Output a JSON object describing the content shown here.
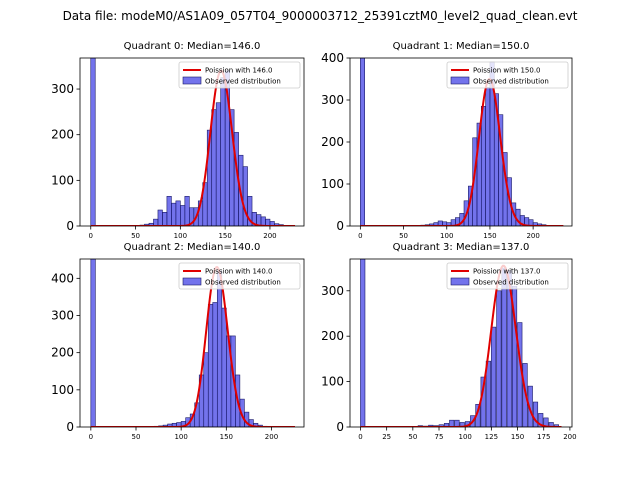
{
  "title": "Data file: modeM0/AS1A09_057T04_9000003712_25391cztM0_level2_quad_clean.evt",
  "colors": {
    "bar": "#0000dc",
    "bar_edge": "#1a1a66",
    "curve": "#e00000"
  },
  "chart_data": [
    {
      "type": "bar",
      "title": "Quadrant 0: Median=146.0",
      "median": 146.0,
      "legend": {
        "curve": "Poission with 146.0",
        "bars": "Observed distribution",
        "placement": "top-right"
      },
      "xlim": [
        -12,
        238
      ],
      "ylim": [
        0,
        368
      ],
      "xticks": [
        0,
        50,
        100,
        150,
        200
      ],
      "yticks": [
        0,
        100,
        200,
        300
      ],
      "bin_width": 5,
      "zero_bar": 368,
      "bins": [
        [
          50,
          1
        ],
        [
          55,
          2
        ],
        [
          60,
          4
        ],
        [
          65,
          6
        ],
        [
          70,
          15
        ],
        [
          75,
          35
        ],
        [
          80,
          30
        ],
        [
          85,
          65
        ],
        [
          90,
          50
        ],
        [
          95,
          55
        ],
        [
          100,
          45
        ],
        [
          105,
          65
        ],
        [
          110,
          40
        ],
        [
          115,
          40
        ],
        [
          120,
          55
        ],
        [
          125,
          95
        ],
        [
          130,
          210
        ],
        [
          135,
          255
        ],
        [
          140,
          270
        ],
        [
          145,
          325
        ],
        [
          150,
          340
        ],
        [
          155,
          255
        ],
        [
          160,
          205
        ],
        [
          165,
          155
        ],
        [
          170,
          130
        ],
        [
          175,
          65
        ],
        [
          180,
          30
        ],
        [
          185,
          25
        ],
        [
          190,
          20
        ],
        [
          195,
          15
        ],
        [
          200,
          10
        ],
        [
          205,
          5
        ],
        [
          210,
          3
        ]
      ],
      "curve_scale": 340
    },
    {
      "type": "bar",
      "title": "Quadrant 1: Median=150.0",
      "median": 150.0,
      "legend": {
        "curve": "Poission with 150.0",
        "bars": "Observed distribution",
        "placement": "top-right"
      },
      "xlim": [
        -12,
        245
      ],
      "ylim": [
        0,
        400
      ],
      "xticks": [
        0,
        50,
        100,
        150,
        200
      ],
      "yticks": [
        0,
        100,
        200,
        300,
        400
      ],
      "bin_width": 5,
      "zero_bar": 400,
      "bins": [
        [
          55,
          1
        ],
        [
          60,
          1
        ],
        [
          70,
          2
        ],
        [
          75,
          3
        ],
        [
          80,
          5
        ],
        [
          85,
          8
        ],
        [
          90,
          12
        ],
        [
          95,
          10
        ],
        [
          100,
          8
        ],
        [
          105,
          15
        ],
        [
          110,
          20
        ],
        [
          115,
          30
        ],
        [
          120,
          60
        ],
        [
          125,
          95
        ],
        [
          130,
          210
        ],
        [
          135,
          245
        ],
        [
          140,
          285
        ],
        [
          145,
          330
        ],
        [
          150,
          390
        ],
        [
          155,
          315
        ],
        [
          160,
          265
        ],
        [
          165,
          175
        ],
        [
          170,
          115
        ],
        [
          175,
          55
        ],
        [
          180,
          40
        ],
        [
          185,
          25
        ],
        [
          190,
          20
        ],
        [
          195,
          15
        ],
        [
          200,
          8
        ],
        [
          205,
          5
        ],
        [
          210,
          3
        ]
      ],
      "curve_scale": 350
    },
    {
      "type": "bar",
      "title": "Quadrant 2: Median=140.0",
      "median": 140.0,
      "legend": {
        "curve": "Poission with 140.0",
        "bars": "Observed distribution",
        "placement": "top-right"
      },
      "xlim": [
        -12,
        236
      ],
      "ylim": [
        0,
        452
      ],
      "xticks": [
        0,
        50,
        100,
        150,
        200
      ],
      "yticks": [
        0,
        100,
        200,
        300,
        400
      ],
      "bin_width": 5,
      "zero_bar": 452,
      "bins": [
        [
          60,
          1
        ],
        [
          70,
          2
        ],
        [
          75,
          3
        ],
        [
          80,
          5
        ],
        [
          85,
          8
        ],
        [
          90,
          10
        ],
        [
          95,
          12
        ],
        [
          100,
          15
        ],
        [
          105,
          25
        ],
        [
          110,
          35
        ],
        [
          115,
          65
        ],
        [
          120,
          140
        ],
        [
          125,
          200
        ],
        [
          130,
          330
        ],
        [
          135,
          335
        ],
        [
          140,
          420
        ],
        [
          145,
          320
        ],
        [
          150,
          245
        ],
        [
          155,
          245
        ],
        [
          160,
          140
        ],
        [
          165,
          75
        ],
        [
          170,
          40
        ],
        [
          175,
          20
        ],
        [
          180,
          10
        ],
        [
          185,
          5
        ],
        [
          190,
          2
        ]
      ],
      "curve_scale": 430
    },
    {
      "type": "bar",
      "title": "Quadrant 3: Median=137.0",
      "median": 137.0,
      "legend": {
        "curve": "Poission with 137.0",
        "bars": "Observed distribution",
        "placement": "top-right"
      },
      "xlim": [
        -10,
        202
      ],
      "ylim": [
        0,
        370
      ],
      "xticks": [
        0,
        25,
        50,
        75,
        100,
        125,
        150,
        175,
        200
      ],
      "yticks": [
        0,
        100,
        200,
        300
      ],
      "bin_width": 4.3,
      "zero_bar": 370,
      "bins": [
        [
          55,
          3
        ],
        [
          60,
          2
        ],
        [
          65,
          4
        ],
        [
          70,
          3
        ],
        [
          75,
          5
        ],
        [
          80,
          8
        ],
        [
          85,
          15
        ],
        [
          90,
          15
        ],
        [
          95,
          10
        ],
        [
          100,
          12
        ],
        [
          105,
          25
        ],
        [
          110,
          50
        ],
        [
          115,
          110
        ],
        [
          120,
          145
        ],
        [
          125,
          220
        ],
        [
          130,
          300
        ],
        [
          135,
          350
        ],
        [
          140,
          345
        ],
        [
          145,
          310
        ],
        [
          150,
          230
        ],
        [
          155,
          140
        ],
        [
          160,
          90
        ],
        [
          165,
          55
        ],
        [
          170,
          30
        ],
        [
          175,
          20
        ],
        [
          180,
          10
        ],
        [
          185,
          5
        ]
      ],
      "curve_scale": 355
    }
  ]
}
